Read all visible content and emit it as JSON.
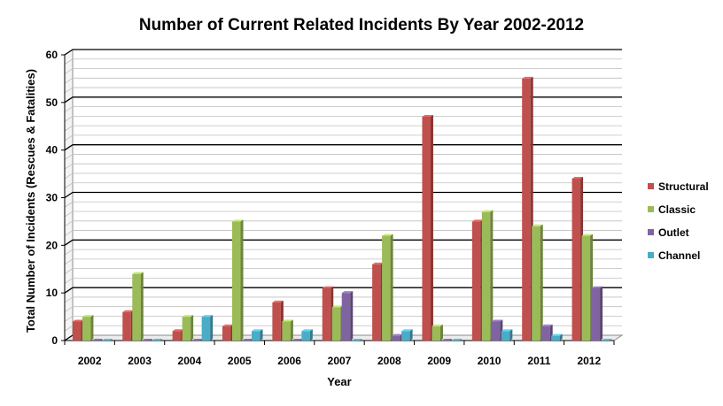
{
  "chart_data": {
    "type": "bar",
    "title": "Number of Current Related Incidents By Year 2002-2012",
    "xlabel": "Year",
    "ylabel": "Total Number of Incidents (Rescues & Fatalities)",
    "ylim": [
      0,
      60
    ],
    "yticks": [
      "0",
      "10",
      "20",
      "30",
      "40",
      "50",
      "60"
    ],
    "grid": true,
    "legend_position": "right",
    "categories": [
      "2002",
      "2003",
      "2004",
      "2005",
      "2006",
      "2007",
      "2008",
      "2009",
      "2010",
      "2011",
      "2012"
    ],
    "series": [
      {
        "name": "Structural",
        "color": "#c0504d",
        "values": [
          4,
          6,
          2,
          3,
          8,
          11,
          16,
          47,
          25,
          55,
          34
        ]
      },
      {
        "name": "Classic",
        "color": "#9bbb59",
        "values": [
          5,
          14,
          5,
          25,
          4,
          7,
          22,
          3,
          27,
          24,
          22
        ]
      },
      {
        "name": "Outlet",
        "color": "#8064a2",
        "values": [
          0,
          0,
          0,
          0,
          0,
          10,
          1,
          0,
          4,
          3,
          11
        ]
      },
      {
        "name": "Channel",
        "color": "#4bacc6",
        "values": [
          0,
          0,
          5,
          2,
          2,
          0,
          2,
          0,
          2,
          1,
          0
        ]
      }
    ]
  }
}
